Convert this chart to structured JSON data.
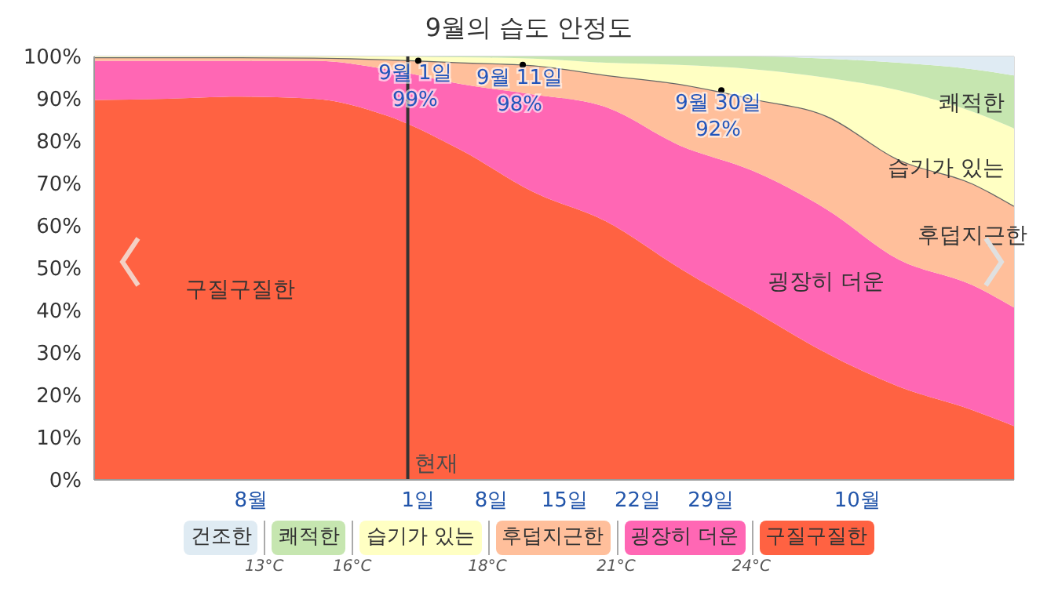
{
  "chart_data": {
    "type": "area",
    "title": "9월의 습도 안정도",
    "stacked": true,
    "x": [
      "--08-01",
      "--08-08",
      "--08-15",
      "--08-22",
      "--08-29",
      "--09-05",
      "--09-12",
      "--09-19",
      "--09-26",
      "--10-03",
      "--10-10",
      "--10-17",
      "--10-24",
      "--10-28"
    ],
    "xlim": [
      "--08-01",
      "--10-28"
    ],
    "xticks": [
      {
        "value": "--08-16",
        "label": "8월"
      },
      {
        "value": "--09-01",
        "label": "1일"
      },
      {
        "value": "--09-08",
        "label": "8일"
      },
      {
        "value": "--09-15",
        "label": "15일"
      },
      {
        "value": "--09-22",
        "label": "22일"
      },
      {
        "value": "--09-29",
        "label": "29일"
      },
      {
        "value": "--10-13",
        "label": "10월"
      }
    ],
    "ylim": [
      0,
      100
    ],
    "yticks": [
      {
        "value": 0,
        "label": "0%"
      },
      {
        "value": 10,
        "label": "10%"
      },
      {
        "value": 20,
        "label": "20%"
      },
      {
        "value": 30,
        "label": "30%"
      },
      {
        "value": 40,
        "label": "40%"
      },
      {
        "value": 50,
        "label": "50%"
      },
      {
        "value": 60,
        "label": "60%"
      },
      {
        "value": 70,
        "label": "70%"
      },
      {
        "value": 80,
        "label": "80%"
      },
      {
        "value": 90,
        "label": "90%"
      },
      {
        "value": 100,
        "label": "100%"
      }
    ],
    "grid": true,
    "legend": "bottom",
    "series": [
      {
        "name": "구질구질한",
        "color": "#ff6242",
        "values": [
          89.7,
          90,
          90.5,
          90,
          86,
          78,
          68,
          61,
          50,
          40,
          30,
          22,
          16.5,
          12.7
        ]
      },
      {
        "name": "굉장히 더운",
        "color": "#ff67b4",
        "values": [
          9.3,
          9,
          8.5,
          9,
          11,
          15.5,
          23,
          27,
          29,
          33,
          34,
          30,
          29.5,
          28
        ]
      },
      {
        "name": "후덥지근한",
        "color": "#ffbf9b",
        "line_style": "solid",
        "values": [
          0.8,
          0.8,
          0.8,
          0.7,
          2.3,
          5.1,
          6.9,
          7.6,
          14.5,
          17,
          22,
          23.6,
          24,
          24
        ]
      },
      {
        "name": "습기가 있는",
        "color": "#ffffc3",
        "values": [
          0.2,
          0.2,
          0.2,
          0.3,
          0.7,
          1.2,
          1.6,
          2.9,
          4.5,
          7,
          9,
          16.4,
          17,
          18.3
        ]
      },
      {
        "name": "쾌적한",
        "color": "#c6e6b0",
        "values": [
          0,
          0,
          0,
          0,
          0,
          0.2,
          0.5,
          1.5,
          2,
          3,
          4.5,
          6.5,
          10,
          12.5
        ]
      },
      {
        "name": "건조한",
        "color": "#dfebf3",
        "values": [
          0,
          0,
          0,
          0,
          0,
          0,
          0,
          0,
          0,
          0,
          0.5,
          1.5,
          3,
          4.5
        ]
      }
    ],
    "ref_lines": [
      {
        "axis": "x",
        "value": "--08-31",
        "label": "현재",
        "color": "#333333"
      }
    ],
    "annotations": [
      {
        "text": "9월 1일\n99%",
        "x": "--09-01",
        "y": 99
      },
      {
        "text": "9월 11일\n98%",
        "x": "--09-11",
        "y": 98
      },
      {
        "text": "9월 30일\n92%",
        "x": "--09-30",
        "y": 92
      },
      "13°C",
      "16°C",
      "18°C",
      "21°C",
      "24°C"
    ]
  }
}
